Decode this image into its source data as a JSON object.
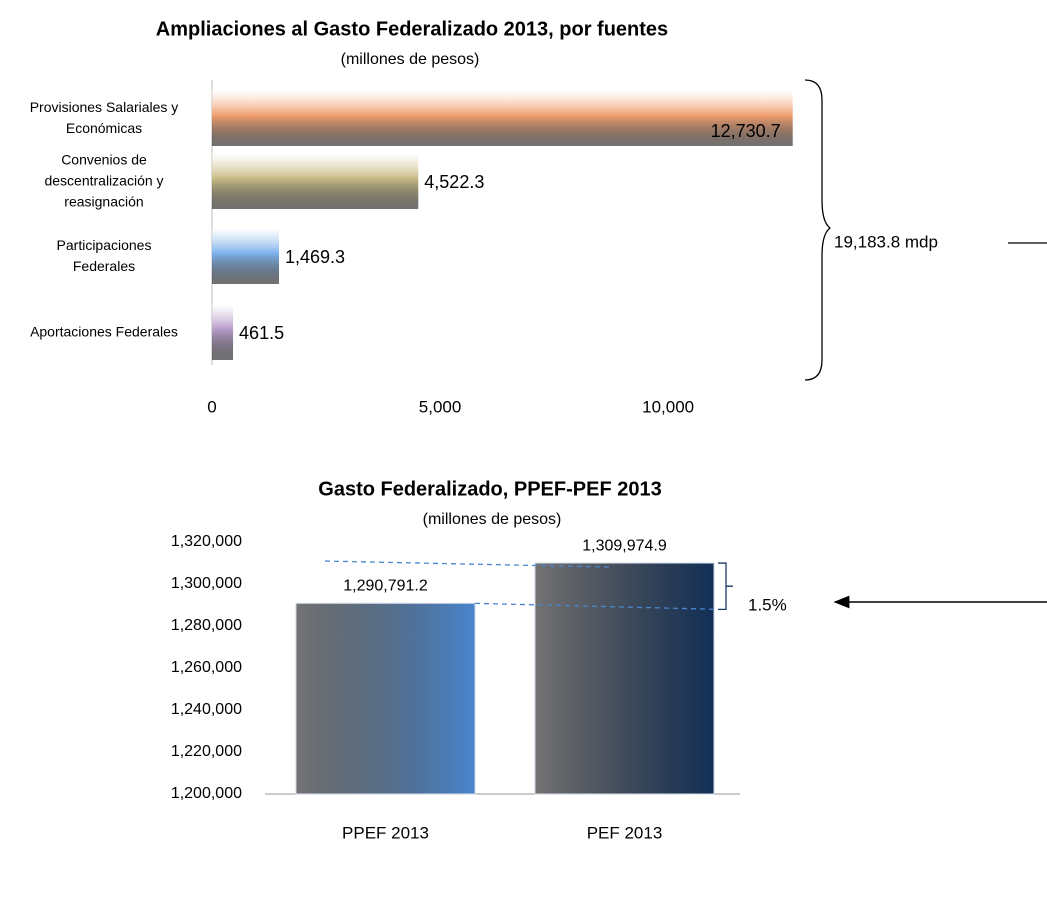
{
  "chart_data": [
    {
      "type": "hbar",
      "title": "Ampliaciones al Gasto Federalizado 2013, por fuentes",
      "subtitle": "(millones de pesos)",
      "categories": [
        "Provisiones Salariales y Económicas",
        "Convenios de descentralización y reasignación",
        "Participaciones Federales",
        "Aportaciones Federales"
      ],
      "values": [
        12730.7,
        4522.3,
        1469.3,
        461.5
      ],
      "value_labels": [
        "12,730.7",
        "4,522.3",
        "1,469.3",
        "461.5"
      ],
      "colors": [
        "#f3a070",
        "#c9bd86",
        "#7db1ec",
        "#b79ccb"
      ],
      "xlim": [
        0,
        13000
      ],
      "xticks": [
        0,
        {
          "value": 5000,
          "label": "5,000"
        },
        {
          "value": 10000,
          "label": "10,000"
        }
      ],
      "annotations": [
        "19,183.8 mdp"
      ]
    },
    {
      "type": "bar",
      "title": "Gasto Federalizado, PPEF-PEF 2013",
      "subtitle": "(millones de pesos)",
      "categories": [
        "PPEF 2013",
        "PEF 2013"
      ],
      "values": [
        1290791.2,
        1309974.9
      ],
      "value_labels": [
        "1,290,791.2",
        "1,309,974.9"
      ],
      "colors": [
        "#4a86cf",
        "#122f57"
      ],
      "ylim": [
        1200000,
        1320000
      ],
      "yticks": [
        {
          "value": 1200000,
          "label": "1,200,000"
        },
        {
          "value": 1220000,
          "label": "1,220,000"
        },
        {
          "value": 1240000,
          "label": "1,240,000"
        },
        {
          "value": 1260000,
          "label": "1,260,000"
        },
        {
          "value": 1280000,
          "label": "1,280,000"
        },
        {
          "value": 1300000,
          "label": "1,300,000"
        },
        {
          "value": 1320000,
          "label": "1,320,000"
        }
      ],
      "annotations": [
        "1.5%"
      ]
    }
  ]
}
